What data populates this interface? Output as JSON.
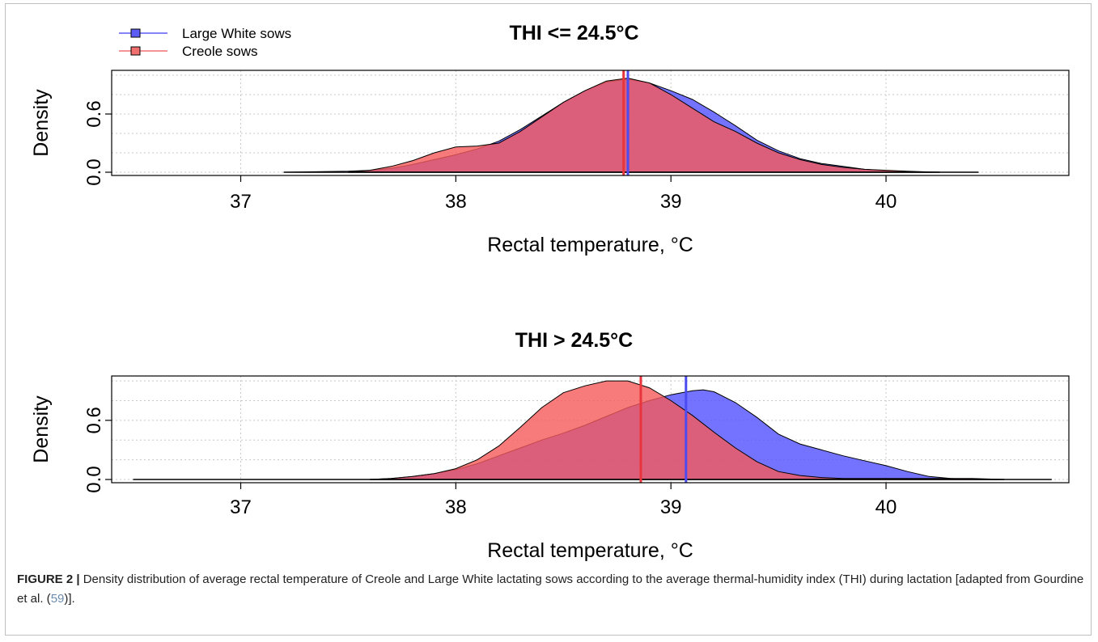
{
  "legend": {
    "items": [
      {
        "label": "Large White sows",
        "color": "#5b5bf5"
      },
      {
        "label": "Creole sows",
        "color": "#f07070"
      }
    ]
  },
  "colors": {
    "large_white_fill": "rgba(80,80,255,0.8)",
    "creole_fill": "rgba(245,90,90,0.8)",
    "large_white_mean_line": "#4b4bf0",
    "creole_mean_line": "#e8343a",
    "grid": "#c8c8c8"
  },
  "chart_data": [
    {
      "type": "area",
      "title": "THI <= 24.5°C",
      "xlabel": "Rectal temperature, °C",
      "ylabel": "Density",
      "xlim": [
        36.4,
        40.85
      ],
      "ylim": [
        0,
        1.05
      ],
      "xticks": [
        37,
        38,
        39,
        40
      ],
      "yticks": [
        "0.0",
        "0.6"
      ],
      "grid": true,
      "legend_position": "top-left",
      "series": [
        {
          "name": "Large White sows",
          "mean": 38.8,
          "range": [
            37.2,
            40.43
          ],
          "x": [
            37.2,
            37.5,
            37.6,
            37.7,
            37.8,
            37.9,
            38.0,
            38.1,
            38.2,
            38.3,
            38.4,
            38.5,
            38.6,
            38.7,
            38.8,
            38.9,
            39.0,
            39.1,
            39.2,
            39.3,
            39.4,
            39.5,
            39.6,
            39.7,
            39.8,
            39.9,
            40.0,
            40.1,
            40.2,
            40.43
          ],
          "y": [
            0.0,
            0.01,
            0.02,
            0.04,
            0.08,
            0.13,
            0.18,
            0.24,
            0.32,
            0.44,
            0.58,
            0.72,
            0.84,
            0.93,
            0.96,
            0.92,
            0.84,
            0.75,
            0.62,
            0.48,
            0.33,
            0.22,
            0.14,
            0.09,
            0.06,
            0.03,
            0.015,
            0.005,
            0.0,
            0.0
          ]
        },
        {
          "name": "Creole sows",
          "mean": 38.78,
          "range": [
            37.5,
            40.25
          ],
          "x": [
            37.5,
            37.6,
            37.7,
            37.8,
            37.9,
            38.0,
            38.1,
            38.2,
            38.3,
            38.4,
            38.5,
            38.6,
            38.7,
            38.8,
            38.9,
            39.0,
            39.1,
            39.2,
            39.3,
            39.4,
            39.5,
            39.6,
            39.7,
            39.8,
            39.9,
            40.0,
            40.1,
            40.25
          ],
          "y": [
            0.0,
            0.02,
            0.06,
            0.12,
            0.2,
            0.26,
            0.27,
            0.3,
            0.42,
            0.57,
            0.72,
            0.84,
            0.94,
            0.97,
            0.92,
            0.8,
            0.66,
            0.52,
            0.42,
            0.3,
            0.2,
            0.13,
            0.08,
            0.05,
            0.03,
            0.02,
            0.01,
            0.0
          ]
        }
      ]
    },
    {
      "type": "area",
      "title": "THI > 24.5°C",
      "xlabel": "Rectal temperature, °C",
      "ylabel": "Density",
      "xlim": [
        36.4,
        40.85
      ],
      "ylim": [
        0,
        1.05
      ],
      "xticks": [
        37,
        38,
        39,
        40
      ],
      "yticks": [
        "0.0",
        "0.6"
      ],
      "grid": true,
      "series": [
        {
          "name": "Large White sows",
          "mean": 39.07,
          "range": [
            36.5,
            40.77
          ],
          "x": [
            36.5,
            37.6,
            37.7,
            37.8,
            37.9,
            38.0,
            38.1,
            38.2,
            38.3,
            38.4,
            38.5,
            38.6,
            38.7,
            38.8,
            38.9,
            39.0,
            39.1,
            39.15,
            39.2,
            39.3,
            39.4,
            39.5,
            39.6,
            39.7,
            39.8,
            39.9,
            40.0,
            40.1,
            40.2,
            40.3,
            40.4,
            40.77
          ],
          "y": [
            0.0,
            0.0,
            0.01,
            0.03,
            0.06,
            0.1,
            0.16,
            0.24,
            0.32,
            0.4,
            0.47,
            0.55,
            0.64,
            0.73,
            0.8,
            0.86,
            0.9,
            0.91,
            0.89,
            0.78,
            0.63,
            0.46,
            0.36,
            0.3,
            0.24,
            0.19,
            0.14,
            0.08,
            0.03,
            0.01,
            0.0,
            0.0
          ]
        },
        {
          "name": "Creole sows",
          "mean": 38.86,
          "range": [
            37.6,
            40.55
          ],
          "x": [
            37.6,
            37.7,
            37.8,
            37.9,
            38.0,
            38.1,
            38.2,
            38.3,
            38.4,
            38.5,
            38.6,
            38.7,
            38.8,
            38.9,
            39.0,
            39.1,
            39.2,
            39.3,
            39.4,
            39.5,
            39.6,
            39.7,
            39.8,
            40.0,
            40.2,
            40.4,
            40.55
          ],
          "y": [
            0.0,
            0.01,
            0.03,
            0.06,
            0.11,
            0.2,
            0.34,
            0.53,
            0.73,
            0.88,
            0.95,
            1.0,
            1.0,
            0.93,
            0.8,
            0.65,
            0.48,
            0.32,
            0.18,
            0.08,
            0.04,
            0.02,
            0.01,
            0.01,
            0.01,
            0.01,
            0.0
          ]
        }
      ]
    }
  ],
  "caption": {
    "label": "FIGURE 2 |",
    "text_before_ref": " Density distribution of average rectal temperature of Creole and Large White lactating sows according to the average thermal-humidity index (THI) during lactation [adapted from Gourdine et al. (",
    "ref": "59",
    "text_after_ref": ")]."
  }
}
